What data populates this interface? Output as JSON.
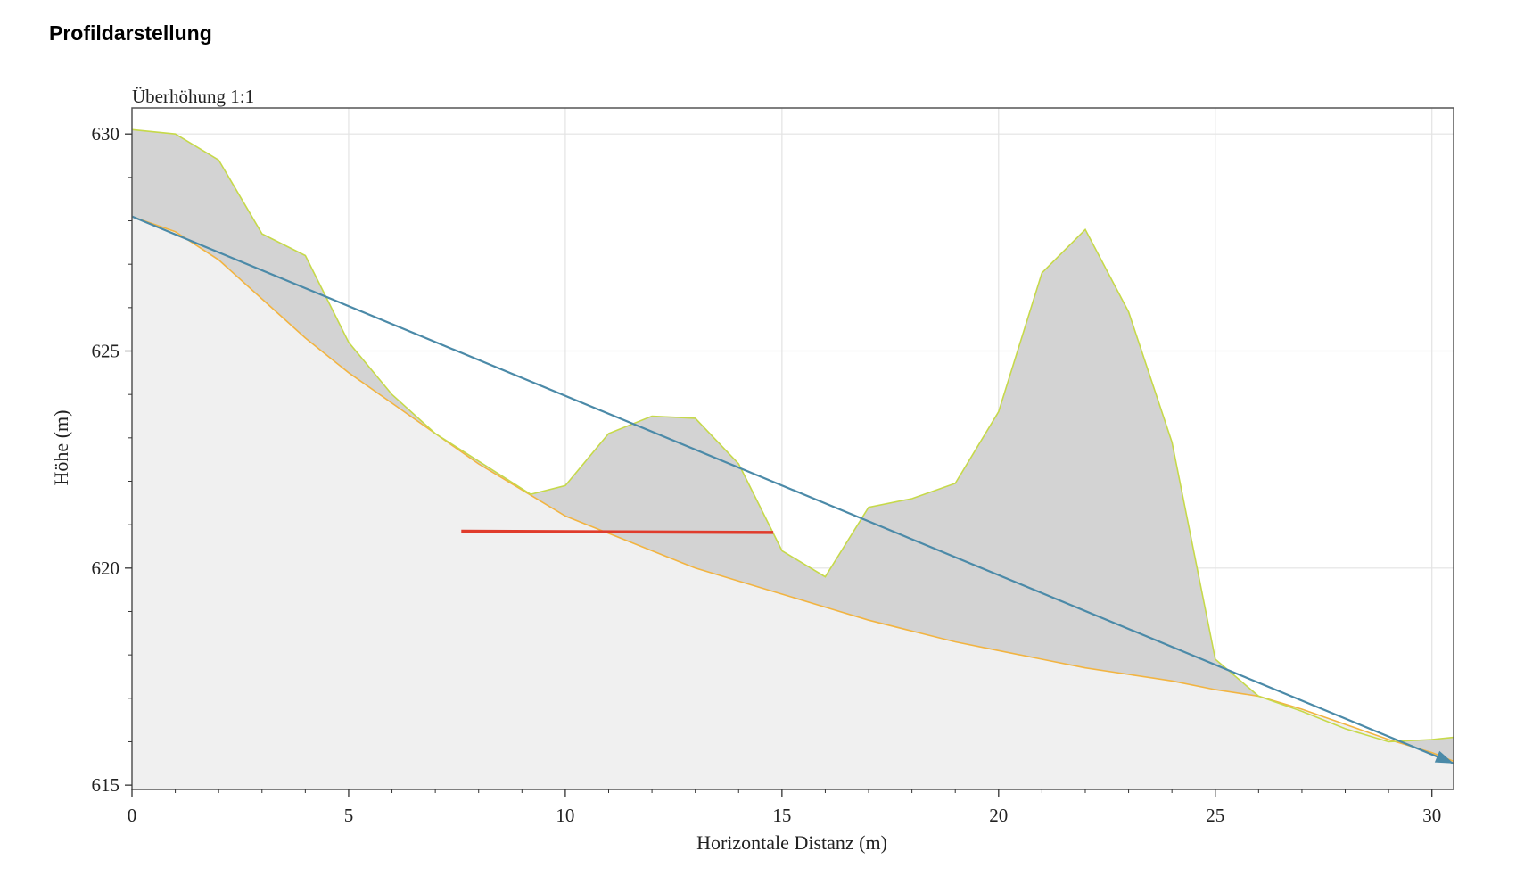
{
  "page": {
    "title": "Profildarstellung"
  },
  "chart_data": {
    "type": "area",
    "title": "Überhöhung 1:1",
    "xlabel": "Horizontale Distanz (m)",
    "ylabel": "Höhe (m)",
    "xlim": [
      0,
      30.5
    ],
    "ylim": [
      614.9,
      630.6
    ],
    "xticks": [
      0,
      5,
      10,
      15,
      20,
      25,
      30
    ],
    "yticks": [
      615,
      620,
      625,
      630
    ],
    "xticks_minor": [
      1,
      2,
      3,
      4,
      6,
      7,
      8,
      9,
      11,
      12,
      13,
      14,
      16,
      17,
      18,
      19,
      21,
      22,
      23,
      24,
      26,
      27,
      28,
      29
    ],
    "yticks_minor": [
      616,
      617,
      618,
      619,
      621,
      622,
      623,
      624,
      626,
      627,
      628,
      629
    ],
    "grid": true,
    "series": [
      {
        "role": "upper-surface",
        "color": "#c6d94a",
        "fill": "#d3d3d3",
        "x": [
          0,
          1,
          2,
          3,
          4,
          5,
          6,
          7,
          9.2,
          10,
          11,
          12,
          13,
          14,
          15,
          16,
          17,
          18,
          19,
          20,
          21,
          22,
          23,
          24,
          25,
          26,
          27,
          28,
          29,
          30,
          30.5
        ],
        "y": [
          630.1,
          630.0,
          629.4,
          627.7,
          627.2,
          625.2,
          624.0,
          623.1,
          621.7,
          621.9,
          623.1,
          623.5,
          623.45,
          622.4,
          620.4,
          619.8,
          621.4,
          621.6,
          621.95,
          623.6,
          626.8,
          627.8,
          625.9,
          622.9,
          617.9,
          617.05,
          616.7,
          616.3,
          616.0,
          616.05,
          616.1
        ]
      },
      {
        "role": "lower-surface",
        "color": "#f2b441",
        "fill": "#f0f0f0",
        "x": [
          0,
          1,
          2,
          3,
          4,
          5,
          6,
          7,
          8,
          9,
          10,
          11,
          12,
          13,
          14,
          15,
          16,
          17,
          18,
          19,
          20,
          21,
          22,
          23,
          24,
          25,
          26,
          27,
          28,
          29,
          30,
          30.5
        ],
        "y": [
          628.1,
          627.75,
          627.1,
          626.2,
          625.3,
          624.5,
          623.8,
          623.1,
          622.4,
          621.8,
          621.2,
          620.8,
          620.4,
          620.0,
          619.7,
          619.4,
          619.1,
          618.8,
          618.55,
          618.3,
          618.1,
          617.9,
          617.7,
          617.55,
          617.4,
          617.2,
          617.05,
          616.75,
          616.4,
          616.05,
          615.75,
          615.55
        ]
      },
      {
        "role": "trajectory-line",
        "color": "#4b8aa8",
        "x": [
          0,
          30.5
        ],
        "y": [
          628.1,
          615.5
        ]
      },
      {
        "role": "marker-line",
        "color": "#e03c2c",
        "x": [
          7.6,
          14.8
        ],
        "y": [
          620.85,
          620.82
        ]
      }
    ]
  }
}
